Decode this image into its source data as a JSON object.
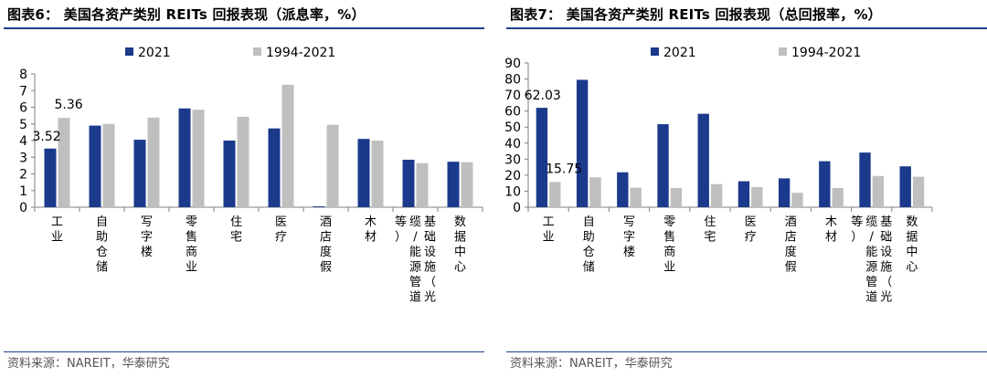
{
  "colors": {
    "series2021": "#1b3a8c",
    "series1994_2021": "#bfbfbf",
    "rule": "#1e3f8c",
    "axis": "#7f7f7f"
  },
  "left": {
    "title": "图表6：  美国各资产类别 REITs 回报表现（派息率，%）",
    "source": "资料来源：NAREIT，华泰研究"
  },
  "right": {
    "title": "图表7：  美国各资产类别 REITs 回报表现（总回报率，%）",
    "source": "资料来源：NAREIT，华泰研究"
  },
  "chart_data": [
    {
      "type": "bar",
      "title": "",
      "xlabel": "",
      "ylabel": "",
      "ylim": [
        0,
        8
      ],
      "yticks": [
        "0",
        "1",
        "2",
        "3",
        "4",
        "5",
        "6",
        "7",
        "8"
      ],
      "grid": false,
      "legend": "top-center",
      "categories": [
        "工业",
        "自助仓储",
        "写字楼",
        "零售商业",
        "住宅",
        "医疗",
        "酒店度假",
        "木材",
        "基础设施（光缆/能源管道等）",
        "数据中心"
      ],
      "series": [
        {
          "name": "2021",
          "values": [
            3.52,
            4.9,
            4.05,
            5.93,
            4.0,
            4.73,
            0.05,
            4.1,
            2.85,
            2.73
          ]
        },
        {
          "name": "1994-2021",
          "values": [
            5.36,
            5.0,
            5.38,
            5.85,
            5.43,
            7.35,
            4.95,
            4.0,
            2.65,
            2.7
          ]
        }
      ],
      "annotations": [
        "3.52",
        "5.36"
      ]
    },
    {
      "type": "bar",
      "title": "",
      "xlabel": "",
      "ylabel": "",
      "ylim": [
        0,
        90
      ],
      "yticks": [
        "0",
        "10",
        "20",
        "30",
        "40",
        "50",
        "60",
        "70",
        "80",
        "90"
      ],
      "grid": false,
      "legend": "top-center",
      "categories": [
        "工业",
        "自助仓储",
        "写字楼",
        "零售商业",
        "住宅",
        "医疗",
        "酒店度假",
        "木材",
        "基础设施（光缆/能源管道等）",
        "数据中心"
      ],
      "series": [
        {
          "name": "2021",
          "values": [
            62.03,
            79.5,
            21.8,
            51.8,
            58.3,
            16.2,
            18.0,
            28.7,
            34.1,
            25.5
          ]
        },
        {
          "name": "1994-2021",
          "values": [
            15.75,
            18.7,
            12.2,
            12.0,
            14.4,
            12.6,
            9.0,
            12.0,
            19.5,
            19.0
          ]
        }
      ],
      "annotations": [
        "62.03",
        "15.75"
      ]
    }
  ]
}
